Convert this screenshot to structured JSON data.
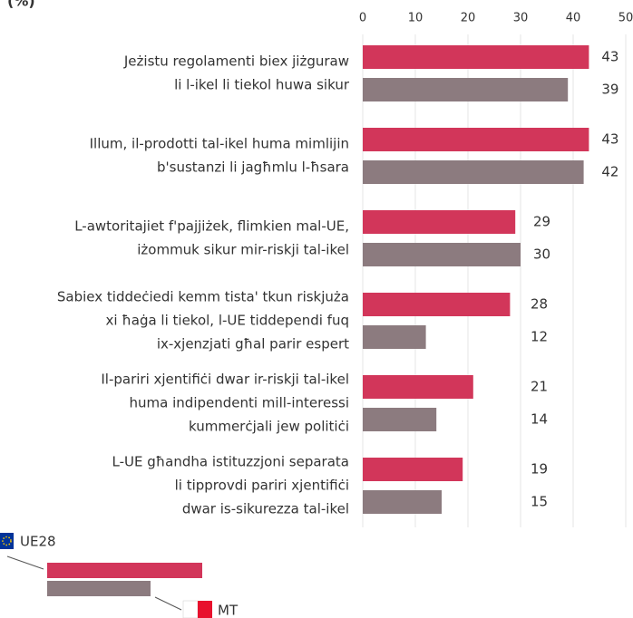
{
  "chart_data": {
    "type": "bar",
    "orientation": "horizontal",
    "title": "(%)",
    "categories": [
      [
        "Jeżistu regolamenti biex jiżguraw",
        "li l-ikel li tiekol huwa sikur"
      ],
      [
        "Illum, il-prodotti tal-ikel huma mimlijin",
        "b'sustanzi li jagħmlu l-ħsara"
      ],
      [
        "L-awtoritajiet f'pajjiżek, flimkien mal-UE,",
        "iżommuk sikur mir-riskji tal-ikel"
      ],
      [
        "Sabiex tiddeċiedi kemm tista' tkun riskjuża",
        "xi ħaġa li tiekol, l-UE tiddependi fuq",
        "ix-xjenzjati għal parir espert"
      ],
      [
        "Il-pariri xjentifiċi dwar ir-riskji tal-ikel",
        "huma indipendenti mill-interessi",
        "kummerċjali jew politiċi"
      ],
      [
        "L-UE għandha istituzzjoni separata",
        "li tipprovdi pariri xjentifiċi",
        "dwar is-sikurezza tal-ikel"
      ]
    ],
    "series": [
      {
        "name": "UE28",
        "color": "#d2365a",
        "values": [
          43,
          43,
          29,
          28,
          21,
          19
        ]
      },
      {
        "name": "MT",
        "color": "#8c7b7f",
        "values": [
          39,
          42,
          30,
          12,
          14,
          15
        ]
      }
    ],
    "xlim": [
      0,
      50
    ],
    "xticks": [
      0,
      10,
      20,
      30,
      40,
      50
    ],
    "grid": true
  }
}
